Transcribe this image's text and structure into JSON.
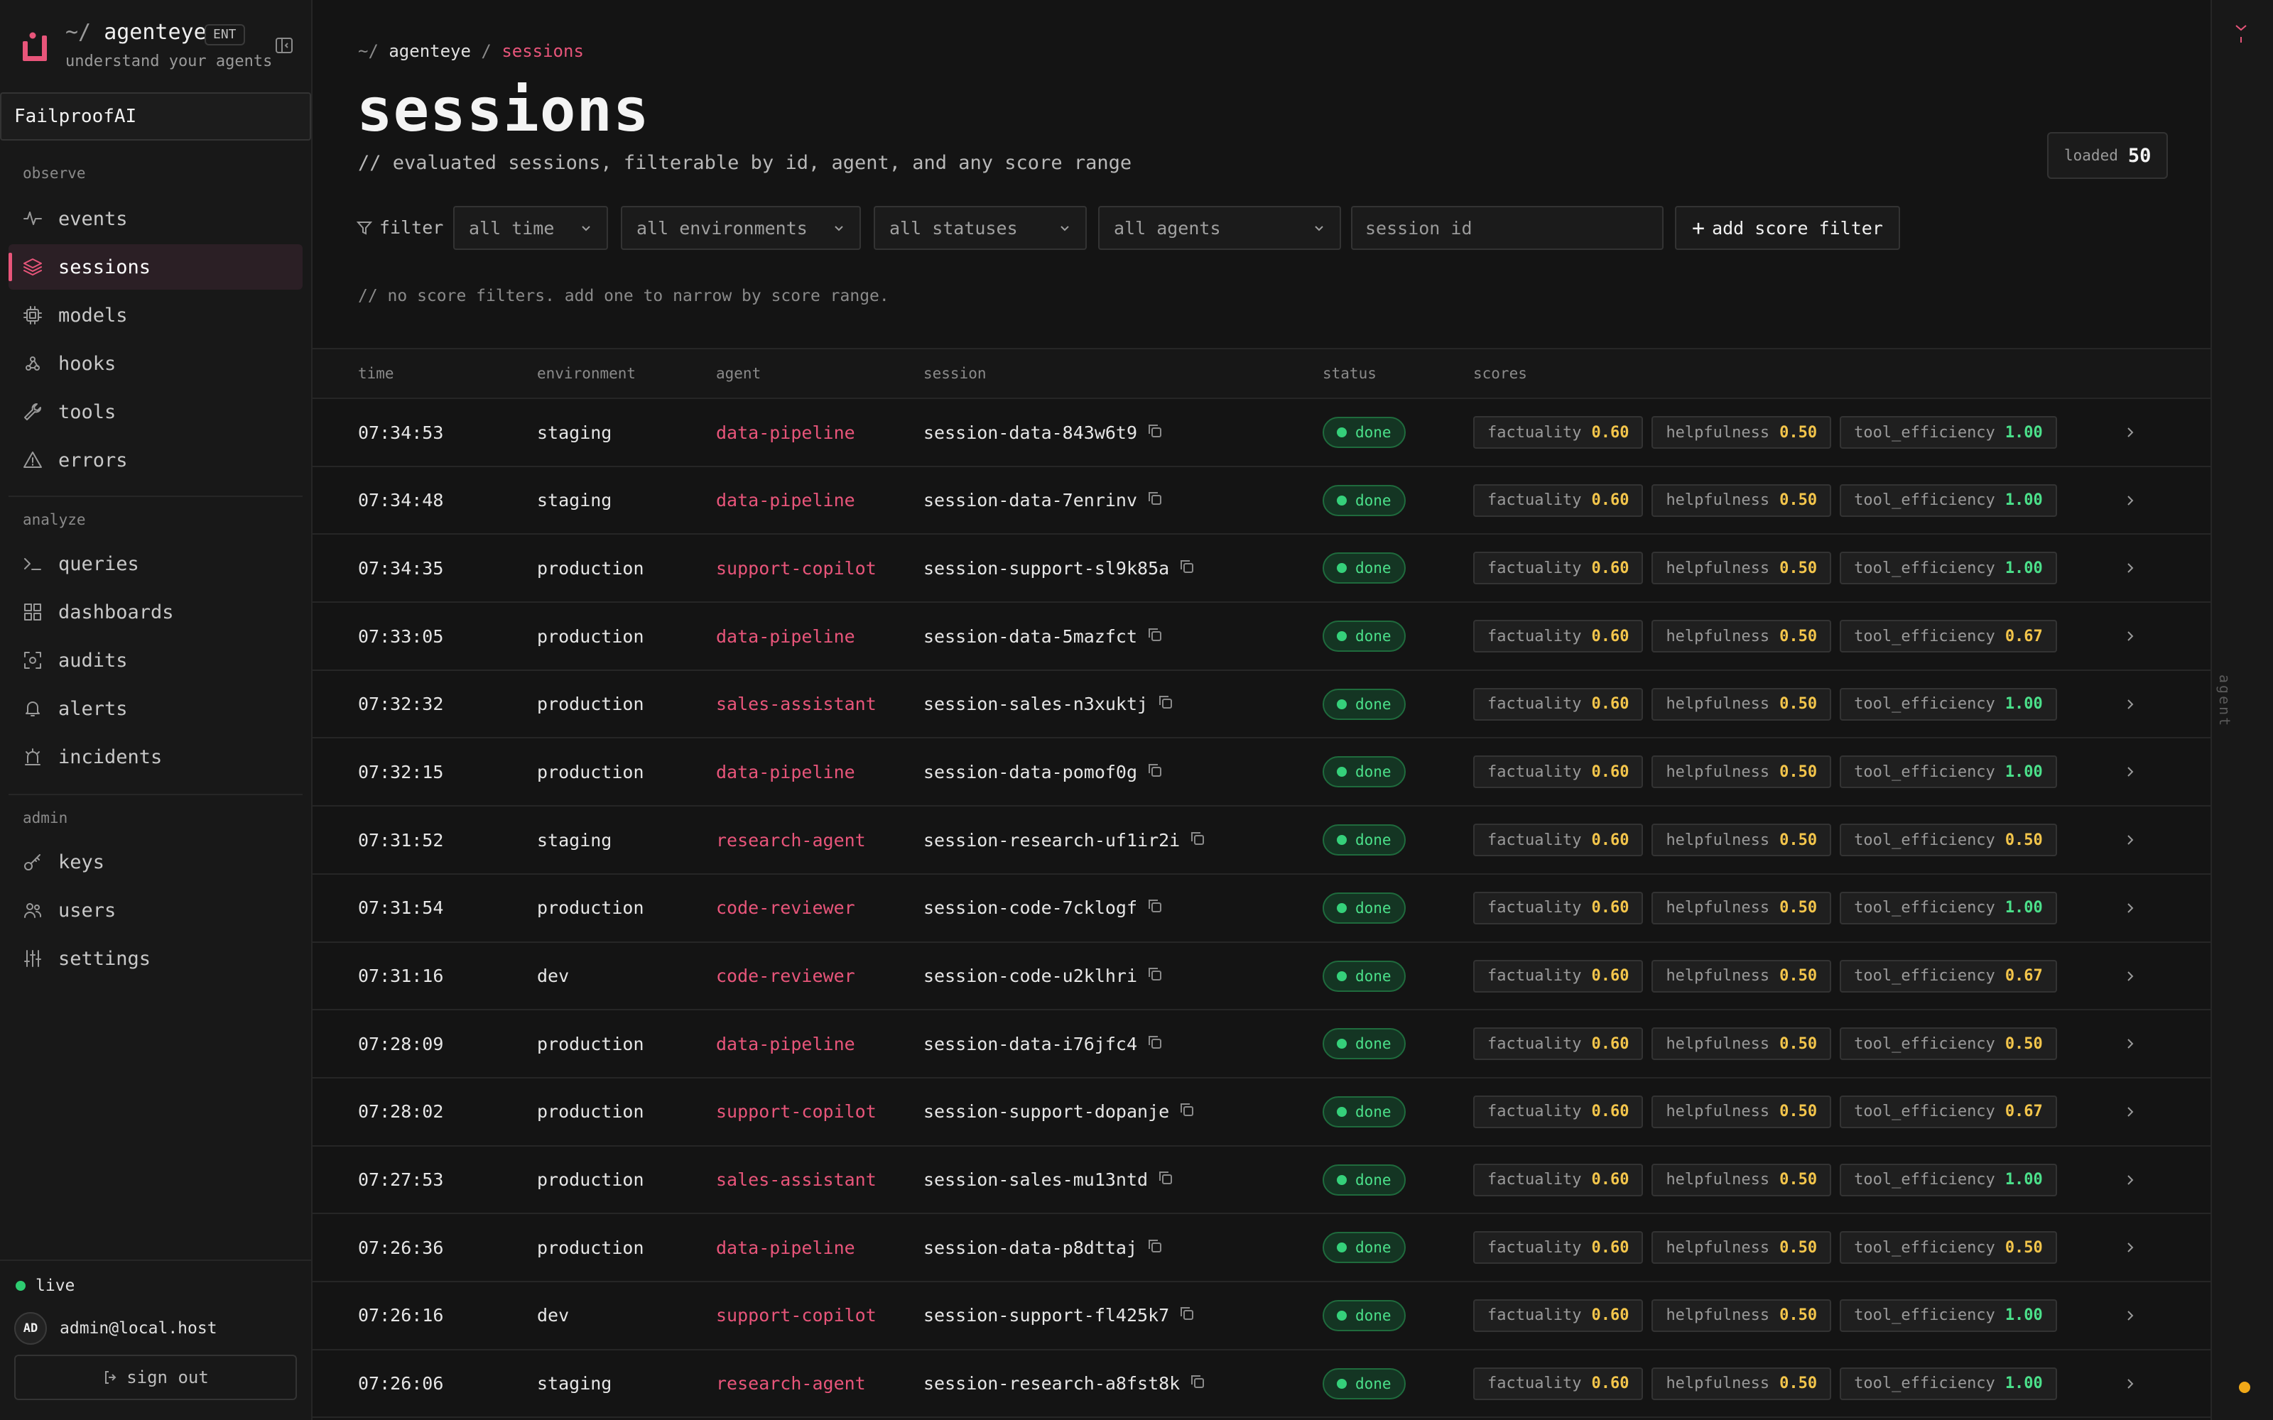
{
  "app": {
    "prefix": "~/",
    "name": "agenteye",
    "badge": "ENT",
    "tagline": "understand your agents",
    "workspace": "FailproofAI"
  },
  "nav": {
    "observe_label": "observe",
    "analyze_label": "analyze",
    "admin_label": "admin",
    "observe": [
      {
        "label": "events",
        "icon": "activity-icon"
      },
      {
        "label": "sessions",
        "icon": "layers-icon",
        "active": true
      },
      {
        "label": "models",
        "icon": "cpu-icon"
      },
      {
        "label": "hooks",
        "icon": "webhook-icon"
      },
      {
        "label": "tools",
        "icon": "wrench-icon"
      },
      {
        "label": "errors",
        "icon": "alert-triangle-icon"
      }
    ],
    "analyze": [
      {
        "label": "queries",
        "icon": "terminal-icon"
      },
      {
        "label": "dashboards",
        "icon": "grid-icon"
      },
      {
        "label": "audits",
        "icon": "scan-icon"
      },
      {
        "label": "alerts",
        "icon": "bell-icon"
      },
      {
        "label": "incidents",
        "icon": "siren-icon"
      }
    ],
    "admin": [
      {
        "label": "keys",
        "icon": "key-icon"
      },
      {
        "label": "users",
        "icon": "users-icon"
      },
      {
        "label": "settings",
        "icon": "sliders-icon"
      }
    ]
  },
  "footer": {
    "live": "live",
    "avatar_initials": "AD",
    "user_email": "admin@local.host",
    "sign_out": "sign out"
  },
  "breadcrumb": {
    "prefix": "~/",
    "root": "agenteye",
    "sep": "/",
    "current": "sessions"
  },
  "page": {
    "title": "sessions",
    "subtitle": "// evaluated sessions, filterable by id, agent, and any score range",
    "loaded_label": "loaded",
    "loaded_count": "50"
  },
  "filters": {
    "label": "filter",
    "time": "all time",
    "environment": "all environments",
    "status": "all statuses",
    "agent": "all agents",
    "session_placeholder": "session id",
    "add_score": "add score filter",
    "empty_note": "// no score filters. add one to narrow by score range."
  },
  "table": {
    "columns": [
      "time",
      "environment",
      "agent",
      "session",
      "status",
      "scores"
    ],
    "score_names": [
      "factuality",
      "helpfulness",
      "tool_efficiency"
    ],
    "rows": [
      {
        "time": "07:34:53",
        "env": "staging",
        "agent": "data-pipeline",
        "session": "session-data-843w6t9",
        "status": "done",
        "scores": [
          "0.60",
          "0.50",
          "1.00"
        ]
      },
      {
        "time": "07:34:48",
        "env": "staging",
        "agent": "data-pipeline",
        "session": "session-data-7enrinv",
        "status": "done",
        "scores": [
          "0.60",
          "0.50",
          "1.00"
        ]
      },
      {
        "time": "07:34:35",
        "env": "production",
        "agent": "support-copilot",
        "session": "session-support-sl9k85a",
        "status": "done",
        "scores": [
          "0.60",
          "0.50",
          "1.00"
        ]
      },
      {
        "time": "07:33:05",
        "env": "production",
        "agent": "data-pipeline",
        "session": "session-data-5mazfct",
        "status": "done",
        "scores": [
          "0.60",
          "0.50",
          "0.67"
        ]
      },
      {
        "time": "07:32:32",
        "env": "production",
        "agent": "sales-assistant",
        "session": "session-sales-n3xuktj",
        "status": "done",
        "scores": [
          "0.60",
          "0.50",
          "1.00"
        ]
      },
      {
        "time": "07:32:15",
        "env": "production",
        "agent": "data-pipeline",
        "session": "session-data-pomof0g",
        "status": "done",
        "scores": [
          "0.60",
          "0.50",
          "1.00"
        ]
      },
      {
        "time": "07:31:52",
        "env": "staging",
        "agent": "research-agent",
        "session": "session-research-uf1ir2i",
        "status": "done",
        "scores": [
          "0.60",
          "0.50",
          "0.50"
        ]
      },
      {
        "time": "07:31:54",
        "env": "production",
        "agent": "code-reviewer",
        "session": "session-code-7cklogf",
        "status": "done",
        "scores": [
          "0.60",
          "0.50",
          "1.00"
        ]
      },
      {
        "time": "07:31:16",
        "env": "dev",
        "agent": "code-reviewer",
        "session": "session-code-u2klhri",
        "status": "done",
        "scores": [
          "0.60",
          "0.50",
          "0.67"
        ]
      },
      {
        "time": "07:28:09",
        "env": "production",
        "agent": "data-pipeline",
        "session": "session-data-i76jfc4",
        "status": "done",
        "scores": [
          "0.60",
          "0.50",
          "0.50"
        ]
      },
      {
        "time": "07:28:02",
        "env": "production",
        "agent": "support-copilot",
        "session": "session-support-dopanje",
        "status": "done",
        "scores": [
          "0.60",
          "0.50",
          "0.67"
        ]
      },
      {
        "time": "07:27:53",
        "env": "production",
        "agent": "sales-assistant",
        "session": "session-sales-mu13ntd",
        "status": "done",
        "scores": [
          "0.60",
          "0.50",
          "1.00"
        ]
      },
      {
        "time": "07:26:36",
        "env": "production",
        "agent": "data-pipeline",
        "session": "session-data-p8dttaj",
        "status": "done",
        "scores": [
          "0.60",
          "0.50",
          "0.50"
        ]
      },
      {
        "time": "07:26:16",
        "env": "dev",
        "agent": "support-copilot",
        "session": "session-support-fl425k7",
        "status": "done",
        "scores": [
          "0.60",
          "0.50",
          "1.00"
        ]
      },
      {
        "time": "07:26:06",
        "env": "staging",
        "agent": "research-agent",
        "session": "session-research-a8fst8k",
        "status": "done",
        "scores": [
          "0.60",
          "0.50",
          "1.00"
        ]
      }
    ]
  },
  "rail": {
    "label": "agent"
  },
  "colors": {
    "accent": "#e8557a",
    "status_green": "#4be08a",
    "score_yellow": "#f3c54b",
    "score_green": "#4be08a",
    "background": "#141414"
  }
}
